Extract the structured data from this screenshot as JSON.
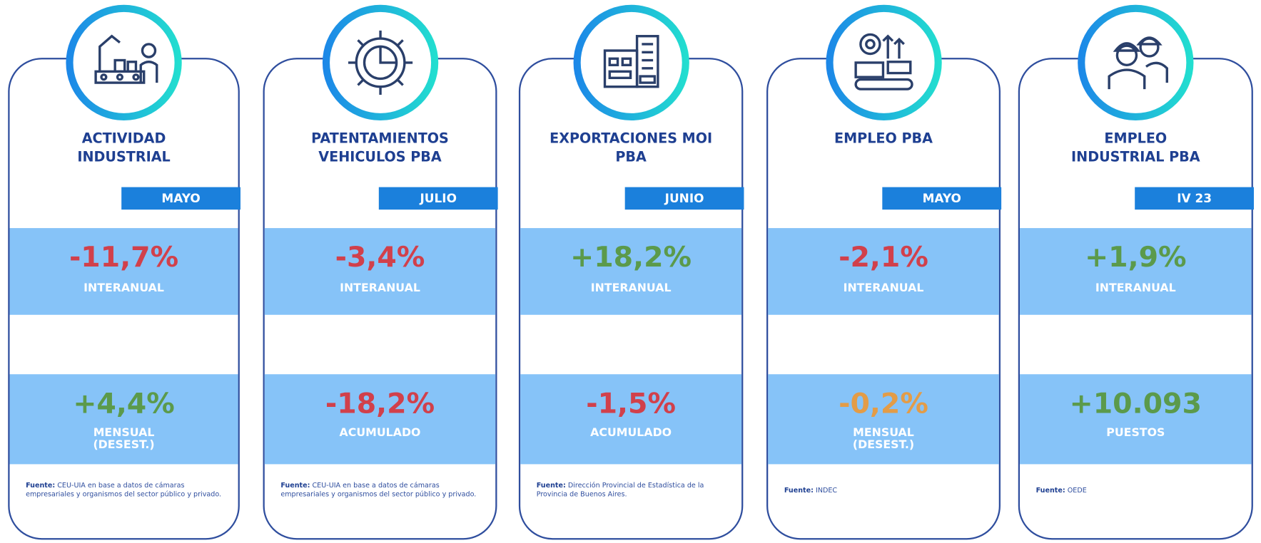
{
  "cards": [
    {
      "title": "ACTIVIDAD\nINDUSTRIAL",
      "period": "MAYO",
      "value1": "-11,7%",
      "value1_color": "#d1404b",
      "label1": "INTERANUAL",
      "value2": "+4,4%",
      "value2_color": "#5b9a4b",
      "label2": "MENSUAL\n(DESEST.)",
      "source_label": "Fuente:",
      "source": "CEU-UIA en base a datos de cámaras empresariales y organismos del sector público y privado."
    },
    {
      "title": "PATENTAMIENTOS\nVEHICULOS PBA",
      "period": "JULIO",
      "value1": "-3,4%",
      "value1_color": "#d1404b",
      "label1": "INTERANUAL",
      "value2": "-18,2%",
      "value2_color": "#d1404b",
      "label2": "ACUMULADO",
      "source_label": "Fuente:",
      "source": "CEU-UIA en base a datos de cámaras empresariales y organismos del sector público y privado."
    },
    {
      "title": "EXPORTACIONES MOI\nPBA",
      "period": "JUNIO",
      "value1": "+18,2%",
      "value1_color": "#5b9a4b",
      "label1": "INTERANUAL",
      "value2": "-1,5%",
      "value2_color": "#d1404b",
      "label2": "ACUMULADO",
      "source_label": "Fuente:",
      "source": "Dirección Provincial de Estadística de la Provincia de Buenos Aires."
    },
    {
      "title": "EMPLEO PBA",
      "period": "MAYO",
      "value1": "-2,1%",
      "value1_color": "#d1404b",
      "label1": "INTERANUAL",
      "value2": "-0,2%",
      "value2_color": "#e39c47",
      "label2": "MENSUAL\n(DESEST.)",
      "source_label": "Fuente:",
      "source": "INDEC"
    },
    {
      "title": "EMPLEO\nINDUSTRIAL PBA",
      "period": "IV 23",
      "value1": "+1,9%",
      "value1_color": "#5b9a4b",
      "label1": "INTERANUAL",
      "value2": "+10.093",
      "value2_color": "#5b9a4b",
      "label2": "PUESTOS",
      "source_label": "Fuente:",
      "source": "OEDE"
    }
  ]
}
